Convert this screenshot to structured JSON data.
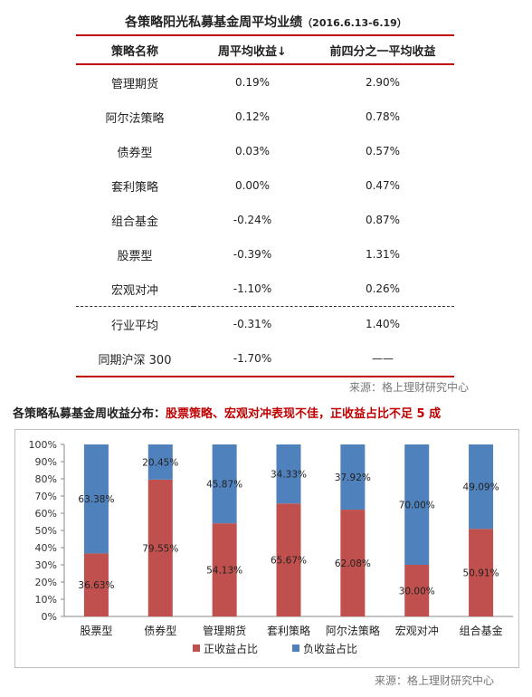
{
  "table": {
    "title": "各策略阳光私募基金周平均业绩",
    "title_period": "（2016.6.13-6.19）",
    "headers": [
      "策略名称",
      "周平均收益",
      "前四分之一平均收益"
    ],
    "sort_arrow": "↓",
    "rows": [
      {
        "name": "管理期货",
        "weekly": "0.19%",
        "top_quartile": "2.90%"
      },
      {
        "name": "阿尔法策略",
        "weekly": "0.12%",
        "top_quartile": "0.78%"
      },
      {
        "name": "债券型",
        "weekly": "0.03%",
        "top_quartile": "0.57%"
      },
      {
        "name": "套利策略",
        "weekly": "0.00%",
        "top_quartile": "0.47%"
      },
      {
        "name": "组合基金",
        "weekly": "-0.24%",
        "top_quartile": "0.87%"
      },
      {
        "name": "股票型",
        "weekly": "-0.39%",
        "top_quartile": "1.31%"
      },
      {
        "name": "宏观对冲",
        "weekly": "-1.10%",
        "top_quartile": "0.26%"
      },
      {
        "name": "行业平均",
        "weekly": "-0.31%",
        "top_quartile": "1.40%"
      },
      {
        "name": "同期沪深 300",
        "weekly": "-1.70%",
        "top_quartile": "——"
      }
    ],
    "source": "来源：格上理财研究中心"
  },
  "chart_title": {
    "prefix": "各策略私募基金周收益分布：",
    "highlight": "股票策略、宏观对冲表现不佳，正收益占比不足 5 成"
  },
  "chart_data": {
    "type": "bar",
    "stacked": true,
    "categories": [
      "股票型",
      "债券型",
      "管理期货",
      "套利策略",
      "阿尔法策略",
      "宏观对冲",
      "组合基金"
    ],
    "series": [
      {
        "name": "正收益占比",
        "color": "#c0504d",
        "values": [
          36.63,
          79.55,
          54.13,
          65.67,
          62.08,
          30.0,
          50.91
        ],
        "labels": [
          "36.63%",
          "79.55%",
          "54.13%",
          "65.67%",
          "62.08%",
          "30.00%",
          "50.91%"
        ]
      },
      {
        "name": "负收益占比",
        "color": "#4f81bd",
        "values": [
          63.38,
          20.45,
          45.87,
          34.33,
          37.92,
          70.0,
          49.09
        ],
        "labels": [
          "63.38%",
          "20.45%",
          "45.87%",
          "34.33%",
          "37.92%",
          "70.00%",
          "49.09%"
        ]
      }
    ],
    "ylim": [
      0,
      100
    ],
    "yticks": [
      "0%",
      "10%",
      "20%",
      "30%",
      "40%",
      "50%",
      "60%",
      "70%",
      "80%",
      "90%",
      "100%"
    ],
    "legend_position": "bottom",
    "grid": false
  },
  "chart_source": "来源：格上理财研究中心"
}
